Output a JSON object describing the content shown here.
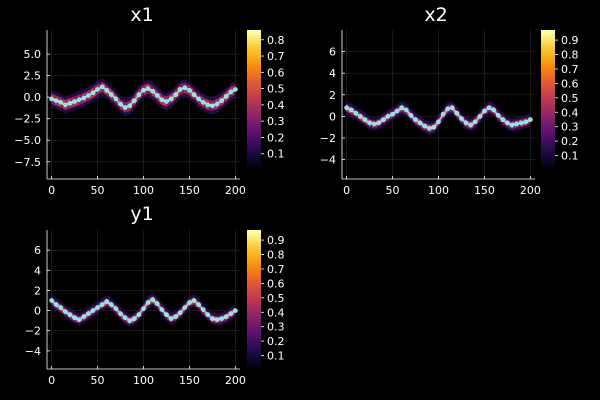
{
  "chart_data": [
    {
      "type": "heatmap",
      "title": "x1",
      "xlim": [
        -5,
        205
      ],
      "ylim": [
        -9.5,
        7.8
      ],
      "xticks": [
        0,
        50,
        100,
        150,
        200
      ],
      "yticks": [
        -7.5,
        -5.0,
        -2.5,
        0.0,
        2.5,
        5.0
      ],
      "ytick_labels": [
        "−7.5",
        "−5.0",
        "−2.5",
        "0.0",
        "2.5",
        "5.0"
      ],
      "xtick_labels": [
        "0",
        "50",
        "100",
        "150",
        "200"
      ],
      "colorbar": {
        "colormap": "inferno",
        "ticks": [
          0.1,
          0.2,
          0.3,
          0.4,
          0.5,
          0.6,
          0.7,
          0.8
        ],
        "tick_labels": [
          "0.1",
          "0.2",
          "0.3",
          "0.4",
          "0.5",
          "0.6",
          "0.7",
          "0.8"
        ],
        "range": [
          0.0,
          0.86
        ]
      },
      "series": [
        {
          "type": "scatter",
          "color": "#7fe9f2",
          "x": [
            0,
            5,
            10,
            15,
            20,
            25,
            30,
            35,
            40,
            45,
            50,
            55,
            60,
            65,
            70,
            75,
            80,
            85,
            90,
            95,
            100,
            105,
            110,
            115,
            120,
            125,
            130,
            135,
            140,
            145,
            150,
            155,
            160,
            165,
            170,
            175,
            180,
            185,
            190,
            195,
            200
          ],
          "y": [
            -0.2,
            -0.4,
            -0.6,
            -0.9,
            -0.7,
            -0.5,
            -0.3,
            -0.1,
            0.2,
            0.5,
            0.9,
            1.2,
            0.8,
            0.3,
            -0.2,
            -0.8,
            -1.2,
            -1.0,
            -0.4,
            0.3,
            0.8,
            1.0,
            0.7,
            0.2,
            -0.3,
            -0.5,
            -0.2,
            0.3,
            0.9,
            1.1,
            0.8,
            0.3,
            -0.2,
            -0.6,
            -0.9,
            -1.0,
            -0.8,
            -0.4,
            0.1,
            0.6,
            0.9
          ]
        }
      ]
    },
    {
      "type": "heatmap",
      "title": "x2",
      "xlim": [
        -5,
        205
      ],
      "ylim": [
        -5.8,
        8.0
      ],
      "xticks": [
        0,
        50,
        100,
        150,
        200
      ],
      "yticks": [
        -4,
        -2,
        0,
        2,
        4,
        6
      ],
      "ytick_labels": [
        "−4",
        "−2",
        "0",
        "2",
        "4",
        "6"
      ],
      "xtick_labels": [
        "0",
        "50",
        "100",
        "150",
        "200"
      ],
      "colorbar": {
        "colormap": "inferno",
        "ticks": [
          0.1,
          0.2,
          0.3,
          0.4,
          0.5,
          0.6,
          0.7,
          0.8,
          0.9
        ],
        "tick_labels": [
          "0.1",
          "0.2",
          "0.3",
          "0.4",
          "0.5",
          "0.6",
          "0.7",
          "0.8",
          "0.9"
        ],
        "range": [
          0.0,
          0.97
        ]
      },
      "series": [
        {
          "type": "scatter",
          "color": "#7fe9f2",
          "x": [
            0,
            5,
            10,
            15,
            20,
            25,
            30,
            35,
            40,
            45,
            50,
            55,
            60,
            65,
            70,
            75,
            80,
            85,
            90,
            95,
            100,
            105,
            110,
            115,
            120,
            125,
            130,
            135,
            140,
            145,
            150,
            155,
            160,
            165,
            170,
            175,
            180,
            185,
            190,
            195,
            200
          ],
          "y": [
            0.8,
            0.6,
            0.3,
            0.0,
            -0.3,
            -0.6,
            -0.7,
            -0.6,
            -0.3,
            0.0,
            0.2,
            0.5,
            0.8,
            0.6,
            0.1,
            -0.3,
            -0.6,
            -0.9,
            -1.1,
            -1.0,
            -0.5,
            0.2,
            0.7,
            0.8,
            0.3,
            -0.2,
            -0.6,
            -0.8,
            -0.5,
            0.0,
            0.5,
            0.8,
            0.6,
            0.1,
            -0.3,
            -0.6,
            -0.8,
            -0.7,
            -0.6,
            -0.5,
            -0.3
          ]
        }
      ]
    },
    {
      "type": "heatmap",
      "title": "y1",
      "xlim": [
        -5,
        205
      ],
      "ylim": [
        -5.8,
        8.0
      ],
      "xticks": [
        0,
        50,
        100,
        150,
        200
      ],
      "yticks": [
        -4,
        -2,
        0,
        2,
        4,
        6
      ],
      "ytick_labels": [
        "−4",
        "−2",
        "0",
        "2",
        "4",
        "6"
      ],
      "xtick_labels": [
        "0",
        "50",
        "100",
        "150",
        "200"
      ],
      "colorbar": {
        "colormap": "inferno",
        "ticks": [
          0.1,
          0.2,
          0.3,
          0.4,
          0.5,
          0.6,
          0.7,
          0.8,
          0.9
        ],
        "tick_labels": [
          "0.1",
          "0.2",
          "0.3",
          "0.4",
          "0.5",
          "0.6",
          "0.7",
          "0.8",
          "0.9"
        ],
        "range": [
          0.0,
          0.97
        ]
      },
      "series": [
        {
          "type": "scatter",
          "color": "#7fe9f2",
          "x": [
            0,
            5,
            10,
            15,
            20,
            25,
            30,
            35,
            40,
            45,
            50,
            55,
            60,
            65,
            70,
            75,
            80,
            85,
            90,
            95,
            100,
            105,
            110,
            115,
            120,
            125,
            130,
            135,
            140,
            145,
            150,
            155,
            160,
            165,
            170,
            175,
            180,
            185,
            190,
            195,
            200
          ],
          "y": [
            1.0,
            0.6,
            0.3,
            -0.1,
            -0.4,
            -0.7,
            -0.9,
            -0.6,
            -0.3,
            0.0,
            0.3,
            0.6,
            0.9,
            0.6,
            0.2,
            -0.3,
            -0.7,
            -1.0,
            -0.8,
            -0.4,
            0.2,
            0.8,
            1.1,
            0.7,
            0.1,
            -0.4,
            -0.8,
            -0.6,
            -0.2,
            0.3,
            0.8,
            1.0,
            0.6,
            0.1,
            -0.4,
            -0.8,
            -0.9,
            -0.8,
            -0.6,
            -0.3,
            0.0
          ]
        }
      ]
    }
  ]
}
